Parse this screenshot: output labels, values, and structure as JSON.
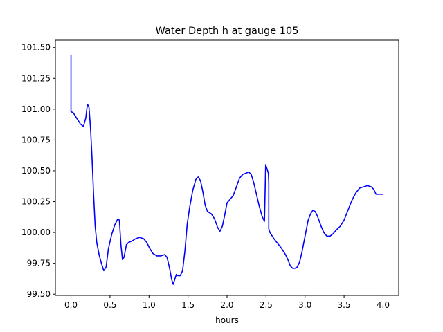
{
  "chart_data": {
    "type": "line",
    "title": "Water Depth h at gauge 105",
    "xlabel": "hours",
    "ylabel": "",
    "xlim": [
      -0.2,
      4.2
    ],
    "ylim": [
      99.49,
      101.56
    ],
    "x_ticks": [
      0.0,
      0.5,
      1.0,
      1.5,
      2.0,
      2.5,
      3.0,
      3.5,
      4.0
    ],
    "x_tick_labels": [
      "0.0",
      "0.5",
      "1.0",
      "1.5",
      "2.0",
      "2.5",
      "3.0",
      "3.5",
      "4.0"
    ],
    "y_ticks": [
      99.5,
      99.75,
      100.0,
      100.25,
      100.5,
      100.75,
      101.0,
      101.25,
      101.5
    ],
    "y_tick_labels": [
      "99.50",
      "99.75",
      "100.00",
      "100.25",
      "100.50",
      "100.75",
      "101.00",
      "101.25",
      "101.50"
    ],
    "grid": false,
    "series": [
      {
        "color": "#0000ff",
        "x": [
          0.0,
          0.0,
          0.0,
          0.03,
          0.07,
          0.12,
          0.16,
          0.19,
          0.21,
          0.23,
          0.25,
          0.27,
          0.29,
          0.31,
          0.33,
          0.36,
          0.39,
          0.42,
          0.45,
          0.48,
          0.52,
          0.56,
          0.6,
          0.62,
          0.64,
          0.66,
          0.68,
          0.71,
          0.74,
          0.78,
          0.83,
          0.88,
          0.93,
          0.97,
          1.01,
          1.05,
          1.1,
          1.15,
          1.2,
          1.23,
          1.26,
          1.29,
          1.31,
          1.33,
          1.35,
          1.37,
          1.4,
          1.43,
          1.46,
          1.49,
          1.52,
          1.56,
          1.6,
          1.63,
          1.66,
          1.69,
          1.72,
          1.75,
          1.8,
          1.84,
          1.88,
          1.91,
          1.94,
          1.97,
          2.0,
          2.04,
          2.08,
          2.12,
          2.16,
          2.2,
          2.24,
          2.28,
          2.31,
          2.34,
          2.37,
          2.41,
          2.45,
          2.48,
          2.495,
          2.5,
          2.51,
          2.52,
          2.53,
          2.535,
          2.535,
          2.55,
          2.6,
          2.65,
          2.7,
          2.75,
          2.78,
          2.81,
          2.84,
          2.87,
          2.9,
          2.93,
          2.96,
          3.0,
          3.04,
          3.07,
          3.1,
          3.13,
          3.16,
          3.2,
          3.24,
          3.28,
          3.32,
          3.36,
          3.4,
          3.45,
          3.5,
          3.55,
          3.6,
          3.65,
          3.7,
          3.75,
          3.8,
          3.85,
          3.88,
          3.91,
          3.95,
          4.0
        ],
        "y": [
          101.44,
          101.0,
          100.98,
          100.97,
          100.93,
          100.88,
          100.86,
          100.93,
          101.04,
          101.02,
          100.85,
          100.6,
          100.3,
          100.05,
          99.92,
          99.82,
          99.75,
          99.69,
          99.72,
          99.87,
          99.98,
          100.06,
          100.11,
          100.1,
          99.9,
          99.78,
          99.8,
          99.9,
          99.92,
          99.93,
          99.95,
          99.96,
          99.95,
          99.92,
          99.87,
          99.83,
          99.81,
          99.81,
          99.82,
          99.8,
          99.72,
          99.62,
          99.58,
          99.62,
          99.66,
          99.65,
          99.65,
          99.69,
          99.85,
          100.07,
          100.2,
          100.34,
          100.43,
          100.45,
          100.42,
          100.33,
          100.22,
          100.17,
          100.15,
          100.11,
          100.04,
          100.01,
          100.05,
          100.14,
          100.24,
          100.27,
          100.3,
          100.37,
          100.44,
          100.47,
          100.48,
          100.49,
          100.47,
          100.41,
          100.33,
          100.22,
          100.13,
          100.09,
          100.55,
          100.54,
          100.52,
          100.5,
          100.48,
          100.4,
          100.03,
          100.0,
          99.95,
          99.91,
          99.87,
          99.82,
          99.78,
          99.73,
          99.71,
          99.71,
          99.72,
          99.76,
          99.84,
          99.97,
          100.1,
          100.15,
          100.18,
          100.17,
          100.13,
          100.06,
          100.0,
          99.97,
          99.97,
          99.99,
          100.02,
          100.05,
          100.1,
          100.18,
          100.26,
          100.32,
          100.36,
          100.37,
          100.38,
          100.37,
          100.35,
          100.31,
          100.31,
          100.31
        ]
      }
    ]
  }
}
